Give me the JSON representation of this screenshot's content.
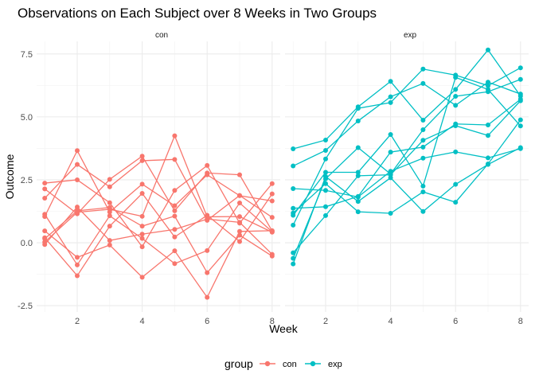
{
  "chart_data": {
    "type": "line",
    "title": "Observations on Each Subject over 8 Weeks in Two Groups",
    "xlabel": "Week",
    "ylabel": "Outcome",
    "facets": [
      "con",
      "exp"
    ],
    "x": [
      1,
      2,
      3,
      4,
      5,
      6,
      7,
      8
    ],
    "xticks": [
      "2",
      "4",
      "6",
      "8"
    ],
    "yticks": [
      "-2.5",
      "0.0",
      "2.5",
      "5.0",
      "7.5"
    ],
    "xlim": [
      0.75,
      8.25
    ],
    "ylim": [
      -2.75,
      8.0
    ],
    "grid": true,
    "legend": {
      "title": "group",
      "position": "bottom",
      "entries": [
        "con",
        "exp"
      ]
    },
    "colors": {
      "con": "#F8766D",
      "exp": "#00BFC4"
    },
    "series": [
      {
        "group": "con",
        "values": [
          0.2,
          -1.31,
          0.66,
          1.96,
          0.23,
          1.09,
          0.05,
          1.94
        ]
      },
      {
        "group": "con",
        "values": [
          1.13,
          -0.88,
          1.07,
          0.17,
          -0.83,
          -0.31,
          1.58,
          0.44
        ]
      },
      {
        "group": "con",
        "values": [
          1.77,
          3.11,
          2.22,
          3.26,
          3.31,
          0.89,
          1.88,
          1.01
        ]
      },
      {
        "group": "con",
        "values": [
          1.04,
          3.66,
          1.22,
          2.33,
          1.47,
          2.7,
          1.87,
          1.66
        ]
      },
      {
        "group": "con",
        "values": [
          0.47,
          -0.58,
          -0.09,
          -1.37,
          -0.32,
          -2.17,
          0.45,
          0.48
        ]
      },
      {
        "group": "con",
        "values": [
          2.37,
          2.5,
          1.59,
          -0.16,
          2.08,
          3.07,
          0.78,
          2.35
        ]
      },
      {
        "group": "con",
        "values": [
          0.03,
          1.21,
          1.33,
          1.05,
          4.25,
          1.03,
          1.04,
          0.42
        ]
      },
      {
        "group": "con",
        "values": [
          -0.07,
          1.42,
          0.09,
          0.34,
          0.53,
          0.94,
          0.81,
          -0.46
        ]
      },
      {
        "group": "con",
        "values": [
          2.14,
          1.15,
          2.52,
          3.44,
          1.27,
          2.77,
          2.7,
          0.47
        ]
      },
      {
        "group": "con",
        "values": [
          0.16,
          1.27,
          1.4,
          0.66,
          1.06,
          -1.19,
          0.3,
          -0.53
        ]
      }
    ],
    "series_exp": [
      {
        "group": "exp",
        "values": [
          3.05,
          3.67,
          4.84,
          5.8,
          6.33,
          5.46,
          6.38,
          5.91
        ]
      },
      {
        "group": "exp",
        "values": [
          -0.84,
          2.63,
          1.64,
          2.58,
          1.24,
          2.32,
          3.11,
          3.78
        ]
      },
      {
        "group": "exp",
        "values": [
          2.15,
          2.08,
          1.82,
          2.84,
          3.36,
          3.61,
          3.37,
          3.74
        ]
      },
      {
        "group": "exp",
        "values": [
          -0.62,
          2.54,
          3.78,
          2.73,
          4.49,
          5.82,
          6.0,
          6.49
        ]
      },
      {
        "group": "exp",
        "values": [
          0.7,
          3.33,
          5.34,
          5.57,
          6.9,
          6.66,
          6.24,
          6.95
        ]
      },
      {
        "group": "exp",
        "values": [
          3.73,
          4.08,
          5.4,
          6.41,
          4.87,
          6.09,
          7.66,
          5.83
        ]
      },
      {
        "group": "exp",
        "values": [
          1.18,
          2.35,
          1.23,
          1.17,
          2.02,
          1.61,
          3.13,
          4.88
        ]
      },
      {
        "group": "exp",
        "values": [
          1.37,
          1.43,
          1.84,
          3.6,
          3.8,
          4.72,
          4.68,
          5.7
        ]
      },
      {
        "group": "exp",
        "values": [
          -0.4,
          1.08,
          2.66,
          2.7,
          4.07,
          4.65,
          4.26,
          5.64
        ]
      },
      {
        "group": "exp",
        "values": [
          1.09,
          2.8,
          2.8,
          4.3,
          2.25,
          6.57,
          6.09,
          4.64
        ]
      }
    ]
  }
}
